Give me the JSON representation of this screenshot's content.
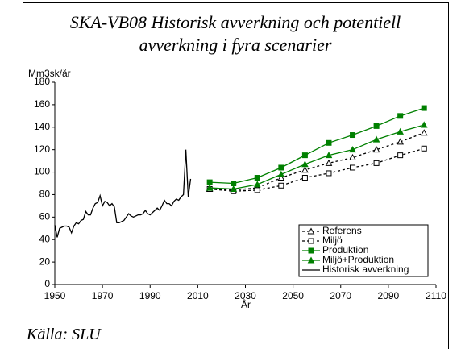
{
  "chart_data": {
    "type": "line",
    "title": "SKA-VB08 Historisk avverkning och potentiell avverkning i fyra scenarier",
    "y_label": "Mm3sk/år",
    "x_label": "År",
    "source": "Källa: SLU",
    "xlim": [
      1950,
      2110
    ],
    "xticks": [
      1950,
      1970,
      1990,
      2010,
      2030,
      2050,
      2070,
      2090,
      2110
    ],
    "ylim": [
      0,
      180
    ],
    "yticks": [
      0,
      20,
      40,
      60,
      80,
      100,
      120,
      140,
      160,
      180
    ],
    "legend": "lower right",
    "series": [
      {
        "name": "Referens",
        "color": "#000000",
        "dash": true,
        "marker": "triangle-open",
        "x": [
          2015,
          2025,
          2035,
          2045,
          2055,
          2065,
          2075,
          2085,
          2095,
          2105
        ],
        "values": [
          85,
          84,
          86,
          95,
          102,
          108,
          113,
          120,
          127,
          135
        ]
      },
      {
        "name": "Miljö",
        "color": "#000000",
        "dash": true,
        "marker": "square-open",
        "x": [
          2015,
          2025,
          2035,
          2045,
          2055,
          2065,
          2075,
          2085,
          2095,
          2105
        ],
        "values": [
          85,
          83,
          84,
          88,
          95,
          99,
          104,
          108,
          115,
          121
        ]
      },
      {
        "name": "Produktion",
        "color": "#008000",
        "dash": false,
        "marker": "square",
        "x": [
          2015,
          2025,
          2035,
          2045,
          2055,
          2065,
          2075,
          2085,
          2095,
          2105
        ],
        "values": [
          91,
          90,
          95,
          104,
          115,
          126,
          133,
          141,
          150,
          157
        ]
      },
      {
        "name": "Miljö+Produktion",
        "color": "#008000",
        "dash": false,
        "marker": "triangle",
        "x": [
          2015,
          2025,
          2035,
          2045,
          2055,
          2065,
          2075,
          2085,
          2095,
          2105
        ],
        "values": [
          86,
          85,
          89,
          98,
          107,
          115,
          120,
          129,
          136,
          142
        ]
      },
      {
        "name": "Historisk avverkning",
        "color": "#000000",
        "dash": false,
        "marker": "none",
        "x": [
          1950,
          1951,
          1952,
          1953,
          1954,
          1955,
          1956,
          1957,
          1958,
          1959,
          1960,
          1961,
          1962,
          1963,
          1964,
          1965,
          1966,
          1967,
          1968,
          1969,
          1970,
          1971,
          1972,
          1973,
          1974,
          1975,
          1976,
          1977,
          1978,
          1979,
          1980,
          1981,
          1982,
          1983,
          1984,
          1985,
          1986,
          1987,
          1988,
          1989,
          1990,
          1991,
          1992,
          1993,
          1994,
          1995,
          1996,
          1997,
          1998,
          1999,
          2000,
          2001,
          2002,
          2003,
          2004,
          2005,
          2006,
          2007
        ],
        "values": [
          53,
          42,
          50,
          51,
          52,
          52,
          51,
          46,
          52,
          55,
          54,
          57,
          58,
          65,
          62,
          62,
          68,
          72,
          73,
          79,
          70,
          74,
          73,
          70,
          72,
          69,
          55,
          55,
          56,
          57,
          60,
          63,
          61,
          60,
          61,
          62,
          62,
          63,
          66,
          63,
          62,
          64,
          66,
          68,
          66,
          70,
          75,
          72,
          72,
          70,
          74,
          76,
          75,
          78,
          80,
          120,
          78,
          94
        ]
      }
    ]
  }
}
